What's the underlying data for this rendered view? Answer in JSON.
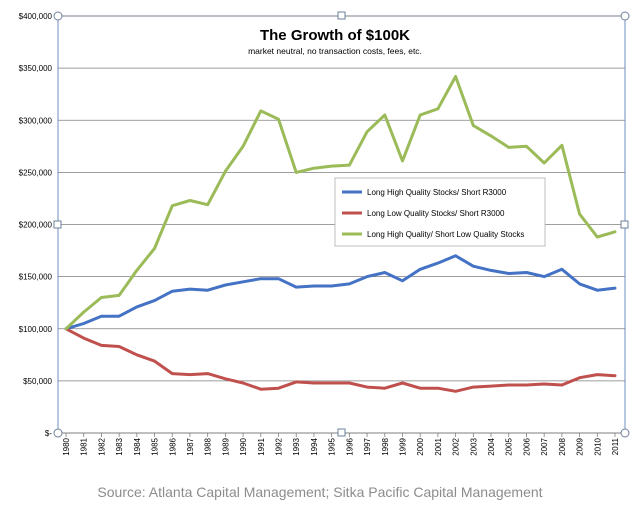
{
  "chart_data": {
    "type": "line",
    "title": "The Growth of $100K",
    "subtitle": "market neutral, no transaction costs, fees, etc.",
    "xlabel": "",
    "ylabel": "",
    "ylim": [
      0,
      400000
    ],
    "yticks": [
      "$-",
      "$50,000",
      "$100,000",
      "$150,000",
      "$200,000",
      "$250,000",
      "$300,000",
      "$350,000",
      "$400,000"
    ],
    "grid": true,
    "legend_position": "center-right",
    "x": [
      "1980",
      "1981",
      "1982",
      "1983",
      "1984",
      "1985",
      "1986",
      "1987",
      "1988",
      "1989",
      "1990",
      "1991",
      "1992",
      "1993",
      "1994",
      "1995",
      "1996",
      "1997",
      "1998",
      "1999",
      "2000",
      "2001",
      "2002",
      "2003",
      "2004",
      "2005",
      "2006",
      "2007",
      "2008",
      "2009",
      "2010",
      "2011"
    ],
    "series": [
      {
        "name": "Long High Quality Stocks/ Short R3000",
        "color": "#4472c4",
        "values": [
          100000,
          105000,
          112000,
          112000,
          121000,
          127000,
          136000,
          138000,
          137000,
          142000,
          145000,
          148000,
          148000,
          140000,
          141000,
          141000,
          143000,
          150000,
          154000,
          146000,
          157000,
          163000,
          170000,
          160000,
          156000,
          153000,
          154000,
          150000,
          157000,
          143000,
          137000,
          139000
        ]
      },
      {
        "name": "Long Low Quality Stocks/ Short R3000",
        "color": "#c0504d",
        "values": [
          100000,
          91000,
          84000,
          83000,
          75000,
          69000,
          57000,
          56000,
          57000,
          52000,
          48000,
          42000,
          43000,
          49000,
          48000,
          48000,
          48000,
          44000,
          43000,
          48000,
          43000,
          43000,
          40000,
          44000,
          45000,
          46000,
          46000,
          47000,
          46000,
          53000,
          56000,
          55000
        ]
      },
      {
        "name": "Long High Quality/ Short Low Quality Stocks",
        "color": "#9bbb59",
        "values": [
          100000,
          116000,
          130000,
          132000,
          156000,
          177000,
          218000,
          223000,
          219000,
          251000,
          275000,
          309000,
          301000,
          250000,
          254000,
          256000,
          257000,
          289000,
          305000,
          261000,
          305000,
          311000,
          342000,
          295000,
          285000,
          274000,
          275000,
          259000,
          276000,
          210000,
          188000,
          193000
        ]
      }
    ]
  },
  "source_text": "Source: Atlanta Capital Management; Sitka Pacific Capital Management"
}
